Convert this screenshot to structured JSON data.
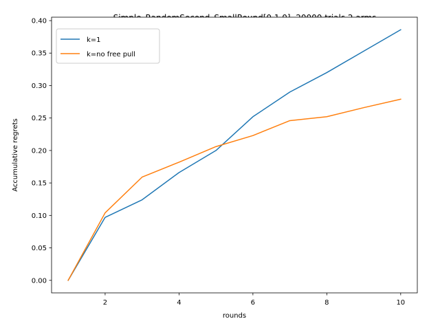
{
  "chart_data": {
    "type": "line",
    "title": "Simple_RandomSecond_SmallRound[0.1,0]. 20000 trials.2 arms",
    "xlabel": "rounds",
    "ylabel": "Accumulative regrets",
    "x": [
      1,
      2,
      3,
      4,
      5,
      6,
      7,
      8,
      9,
      10
    ],
    "xlim": [
      0.55,
      10.45
    ],
    "ylim": [
      -0.0193,
      0.4053
    ],
    "xticks": [
      2,
      4,
      6,
      8,
      10
    ],
    "yticks": [
      0.0,
      0.05,
      0.1,
      0.15,
      0.2,
      0.25,
      0.3,
      0.35,
      0.4
    ],
    "ytick_labels": [
      "0.00",
      "0.05",
      "0.10",
      "0.15",
      "0.20",
      "0.25",
      "0.30",
      "0.35",
      "0.40"
    ],
    "grid": false,
    "legend_position": "top-left",
    "series": [
      {
        "name": "k=1",
        "color": "#1f77b4",
        "values": [
          0.0,
          0.097,
          0.124,
          0.166,
          0.2,
          0.252,
          0.29,
          0.32,
          0.353,
          0.386
        ]
      },
      {
        "name": "k=no free pull",
        "color": "#ff7f0e",
        "values": [
          0.0,
          0.104,
          0.159,
          0.182,
          0.206,
          0.223,
          0.246,
          0.252,
          0.266,
          0.279
        ]
      }
    ]
  }
}
